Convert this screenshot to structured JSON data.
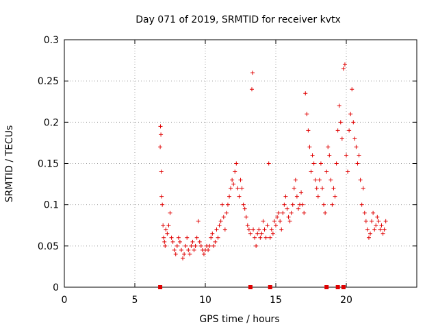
{
  "chart_data": {
    "type": "scatter",
    "title": "Day 071 of 2019, SRMTID for receiver kvtx",
    "xlabel": "GPS time / hours",
    "ylabel": "SRMTID / TECUs",
    "xlim": [
      0,
      25
    ],
    "ylim": [
      0,
      0.3
    ],
    "xticks": [
      0,
      5,
      10,
      15,
      20
    ],
    "xtick_labels": [
      "0",
      "5",
      "10",
      "15",
      "20"
    ],
    "yticks": [
      0,
      0.05,
      0.1,
      0.15,
      0.2,
      0.25,
      0.3
    ],
    "ytick_labels": [
      "0",
      "0.05",
      "0.1",
      "0.15",
      "0.2",
      "0.25",
      "0.3"
    ],
    "grid": true,
    "marker": "+",
    "color": "#e00000",
    "series": [
      {
        "name": "SRMTID",
        "x": [
          6.8,
          6.82,
          6.85,
          6.88,
          6.9,
          6.95,
          7.0,
          7.05,
          7.1,
          7.15,
          7.2,
          7.3,
          7.4,
          7.5,
          7.6,
          7.7,
          7.8,
          7.9,
          8.0,
          8.1,
          8.2,
          8.3,
          8.4,
          8.5,
          8.6,
          8.7,
          8.8,
          8.9,
          9.0,
          9.1,
          9.2,
          9.3,
          9.4,
          9.5,
          9.6,
          9.7,
          9.8,
          9.9,
          10.0,
          10.1,
          10.2,
          10.3,
          10.4,
          10.5,
          10.6,
          10.7,
          10.8,
          10.9,
          11.0,
          11.1,
          11.2,
          11.3,
          11.4,
          11.5,
          11.6,
          11.7,
          11.8,
          11.9,
          12.0,
          12.1,
          12.2,
          12.3,
          12.4,
          12.5,
          12.6,
          12.7,
          12.8,
          12.9,
          13.0,
          13.1,
          13.2,
          13.3,
          13.35,
          13.4,
          13.5,
          13.6,
          13.7,
          13.8,
          13.9,
          14.0,
          14.1,
          14.2,
          14.3,
          14.4,
          14.5,
          14.6,
          14.7,
          14.8,
          14.9,
          15.0,
          15.1,
          15.2,
          15.3,
          15.4,
          15.5,
          15.6,
          15.7,
          15.8,
          15.9,
          16.0,
          16.1,
          16.2,
          16.3,
          16.4,
          16.5,
          16.6,
          16.7,
          16.8,
          16.9,
          17.0,
          17.1,
          17.2,
          17.3,
          17.4,
          17.5,
          17.6,
          17.7,
          17.8,
          17.9,
          18.0,
          18.1,
          18.2,
          18.3,
          18.4,
          18.5,
          18.6,
          18.7,
          18.8,
          18.9,
          19.0,
          19.1,
          19.2,
          19.3,
          19.4,
          19.5,
          19.6,
          19.7,
          19.8,
          19.9,
          20.0,
          20.1,
          20.2,
          20.3,
          20.4,
          20.5,
          20.6,
          20.7,
          20.8,
          20.9,
          21.0,
          21.1,
          21.2,
          21.3,
          21.4,
          21.5,
          21.6,
          21.7,
          21.8,
          21.9,
          22.0,
          22.1,
          22.2,
          22.3,
          22.4,
          22.5,
          22.6,
          22.7,
          22.8
        ],
        "y": [
          0.17,
          0.195,
          0.185,
          0.14,
          0.11,
          0.1,
          0.075,
          0.06,
          0.055,
          0.05,
          0.07,
          0.065,
          0.075,
          0.09,
          0.06,
          0.055,
          0.045,
          0.04,
          0.05,
          0.06,
          0.055,
          0.045,
          0.035,
          0.04,
          0.05,
          0.06,
          0.045,
          0.04,
          0.05,
          0.055,
          0.045,
          0.05,
          0.06,
          0.08,
          0.055,
          0.05,
          0.045,
          0.04,
          0.045,
          0.05,
          0.045,
          0.05,
          0.06,
          0.065,
          0.05,
          0.055,
          0.07,
          0.06,
          0.075,
          0.08,
          0.1,
          0.085,
          0.07,
          0.09,
          0.1,
          0.11,
          0.12,
          0.13,
          0.125,
          0.14,
          0.15,
          0.12,
          0.11,
          0.13,
          0.12,
          0.1,
          0.095,
          0.085,
          0.075,
          0.07,
          0.065,
          0.24,
          0.26,
          0.07,
          0.06,
          0.05,
          0.065,
          0.07,
          0.06,
          0.065,
          0.08,
          0.07,
          0.06,
          0.075,
          0.15,
          0.06,
          0.07,
          0.065,
          0.08,
          0.075,
          0.085,
          0.09,
          0.08,
          0.07,
          0.09,
          0.1,
          0.11,
          0.095,
          0.085,
          0.08,
          0.09,
          0.1,
          0.12,
          0.13,
          0.11,
          0.095,
          0.1,
          0.115,
          0.1,
          0.09,
          0.235,
          0.21,
          0.19,
          0.17,
          0.14,
          0.16,
          0.15,
          0.13,
          0.12,
          0.11,
          0.13,
          0.15,
          0.12,
          0.1,
          0.09,
          0.14,
          0.17,
          0.16,
          0.13,
          0.1,
          0.12,
          0.11,
          0.15,
          0.19,
          0.22,
          0.2,
          0.18,
          0.265,
          0.27,
          0.16,
          0.14,
          0.19,
          0.21,
          0.24,
          0.2,
          0.18,
          0.17,
          0.15,
          0.16,
          0.13,
          0.1,
          0.12,
          0.09,
          0.08,
          0.07,
          0.06,
          0.065,
          0.08,
          0.09,
          0.07,
          0.075,
          0.085,
          0.08,
          0.07,
          0.075,
          0.065,
          0.07,
          0.08
        ]
      }
    ],
    "axis_marks_x": [
      6.8,
      13.2,
      14.6,
      18.6,
      19.4,
      19.8
    ]
  }
}
